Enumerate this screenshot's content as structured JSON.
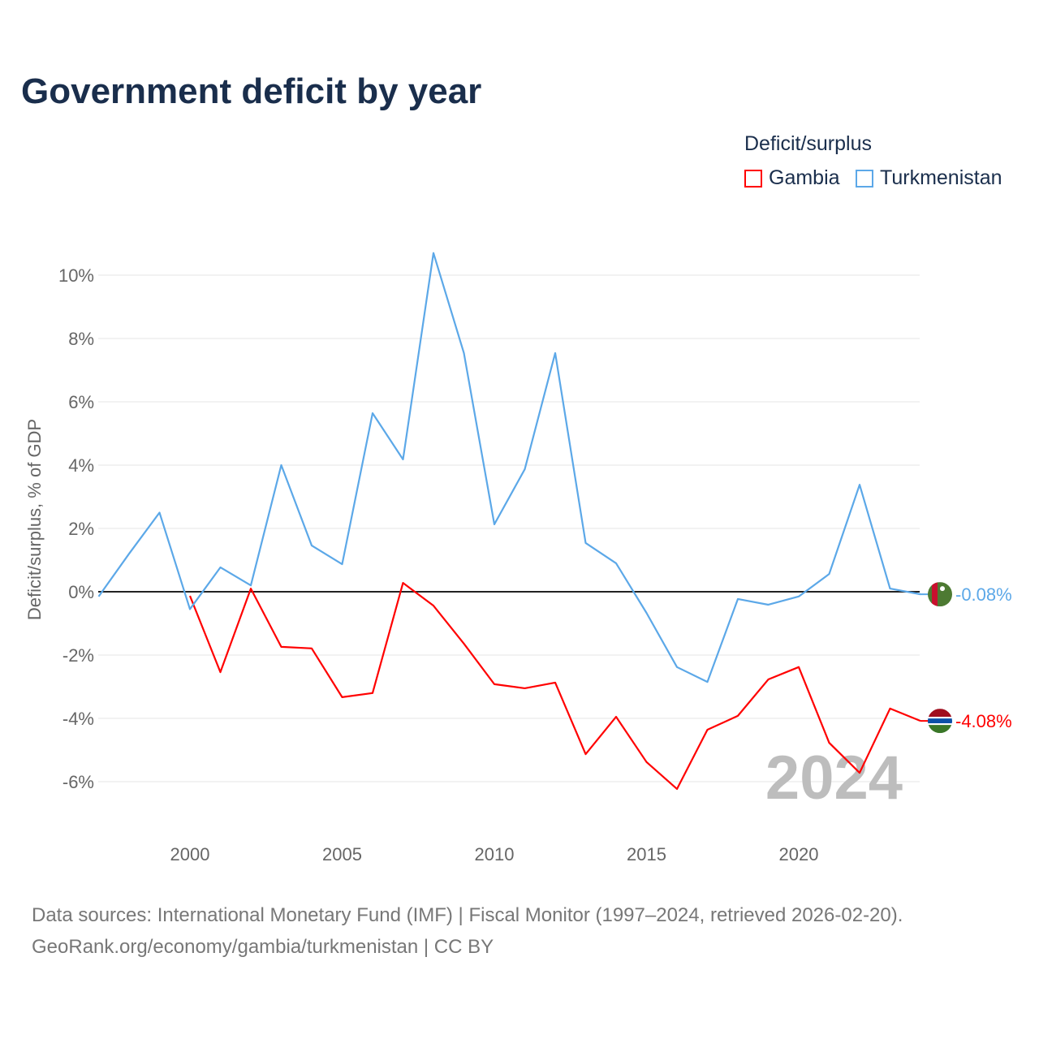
{
  "chart_data": {
    "type": "line",
    "title": "Government deficit by year",
    "ylabel": "Deficit/surplus, % of GDP",
    "xlabel": "",
    "ylim": [
      -7,
      11
    ],
    "xlim": [
      1997,
      2024
    ],
    "yticks": [
      -6,
      -4,
      -2,
      0,
      2,
      4,
      6,
      8,
      10
    ],
    "ytick_labels": [
      "-6%",
      "-4%",
      "-2%",
      "0%",
      "2%",
      "4%",
      "6%",
      "8%",
      "10%"
    ],
    "xticks": [
      2000,
      2005,
      2010,
      2015,
      2020
    ],
    "xtick_labels": [
      "2000",
      "2005",
      "2010",
      "2015",
      "2020"
    ],
    "grid": true,
    "legend_title": "Deficit/surplus",
    "legend_position": "top-right",
    "year_annotation": "2024",
    "series": [
      {
        "name": "Gambia",
        "color": "#ff0000",
        "end_label": "-4.08%",
        "x": [
          2000,
          2001,
          2002,
          2003,
          2004,
          2005,
          2006,
          2007,
          2008,
          2009,
          2010,
          2011,
          2012,
          2013,
          2014,
          2015,
          2016,
          2017,
          2018,
          2019,
          2020,
          2021,
          2022,
          2023,
          2024
        ],
        "values": [
          -0.13,
          -2.54,
          0.1,
          -1.74,
          -1.79,
          -3.33,
          -3.2,
          0.28,
          -0.44,
          -1.64,
          -2.92,
          -3.05,
          -2.87,
          -5.13,
          -3.95,
          -5.38,
          -6.23,
          -4.36,
          -3.92,
          -2.77,
          -2.38,
          -4.77,
          -5.72,
          -3.69,
          -4.08
        ]
      },
      {
        "name": "Turkmenistan",
        "color": "#5ca8e8",
        "end_label": "-0.08%",
        "x": [
          1997,
          1998,
          1999,
          2000,
          2001,
          2002,
          2003,
          2004,
          2005,
          2006,
          2007,
          2008,
          2009,
          2010,
          2011,
          2012,
          2013,
          2014,
          2015,
          2016,
          2017,
          2018,
          2019,
          2020,
          2021,
          2022,
          2023,
          2024
        ],
        "values": [
          -0.15,
          1.2,
          2.5,
          -0.55,
          0.77,
          0.2,
          4.0,
          1.46,
          0.87,
          5.64,
          4.18,
          10.7,
          7.54,
          2.13,
          3.87,
          7.54,
          1.54,
          0.9,
          -0.67,
          -2.38,
          -2.85,
          -0.23,
          -0.41,
          -0.15,
          0.56,
          3.38,
          0.1,
          -0.08
        ]
      }
    ]
  },
  "source": {
    "line1": "Data sources: International Monetary Fund (IMF) | Fiscal Monitor (1997–2024, retrieved 2026-02-20).",
    "line2": "GeoRank.org/economy/gambia/turkmenistan | CC BY"
  }
}
